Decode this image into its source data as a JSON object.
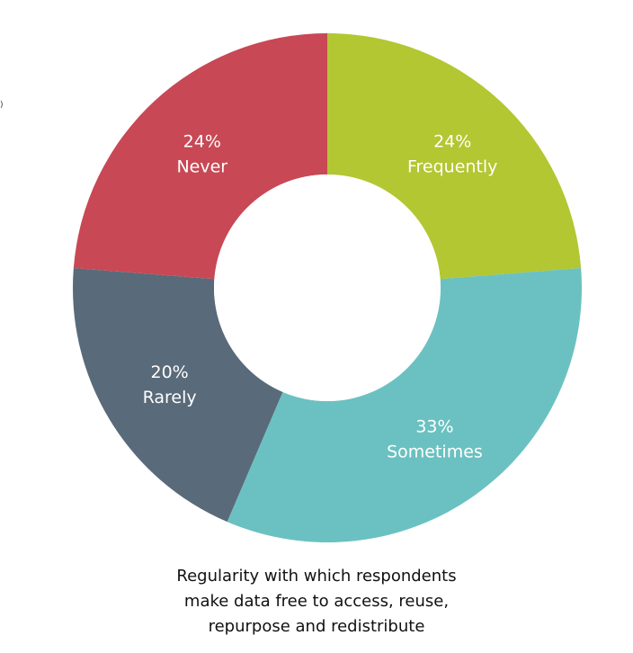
{
  "chart_data": {
    "type": "pie",
    "variant": "donut",
    "slices": [
      {
        "label": "Frequently",
        "value": 24,
        "value_text": "24%",
        "color": "#b2c731"
      },
      {
        "label": "Sometimes",
        "value": 33,
        "value_text": "33%",
        "color": "#6bc1c1"
      },
      {
        "label": "Rarely",
        "value": 20,
        "value_text": "20%",
        "color": "#596a7a"
      },
      {
        "label": "Never",
        "value": 24,
        "value_text": "24%",
        "color": "#c84855"
      }
    ],
    "start_angle_deg": 0,
    "direction": "clockwise",
    "legend": "none"
  },
  "caption": {
    "lines": [
      "Regularity with which respondents",
      "make data free to access, reuse,",
      "repurpose and redistribute"
    ]
  }
}
